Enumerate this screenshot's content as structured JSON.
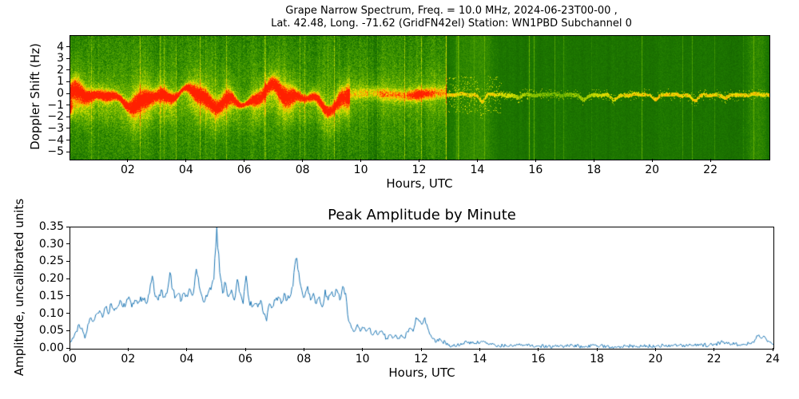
{
  "figure": {
    "suptitle_line1": "Grape Narrow Spectrum, Freq. = 10.0 MHz, 2024-06-23T00-00 ,",
    "suptitle_line2": "Lat.  42.48, Long. -71.62 (GridFN42el) Station: WN1PBD Subchannel 0"
  },
  "chart_data": [
    {
      "type": "heatmap",
      "name": "doppler-spectrogram",
      "xlabel": "Hours, UTC",
      "ylabel": "Doppler Shift (Hz)",
      "xlim": [
        0,
        24
      ],
      "ylim": [
        -5.6,
        5.0
      ],
      "xticks": [
        2,
        4,
        6,
        8,
        10,
        12,
        14,
        16,
        18,
        20,
        22
      ],
      "xtick_labels": [
        "02",
        "04",
        "06",
        "08",
        "10",
        "12",
        "14",
        "16",
        "18",
        "20",
        "22"
      ],
      "yticks": [
        4,
        3,
        2,
        1,
        0,
        -1,
        -2,
        -3,
        -4,
        -5
      ],
      "ytick_labels": [
        "4",
        "3",
        "2",
        "1",
        "0",
        "−1",
        "−2",
        "−3",
        "−4",
        "−5"
      ],
      "colormap_stops": [
        [
          0.0,
          "#0b4d00"
        ],
        [
          0.3,
          "#1f7a00"
        ],
        [
          0.5,
          "#57a800"
        ],
        [
          0.65,
          "#a8cf00"
        ],
        [
          0.75,
          "#f0e400"
        ],
        [
          0.85,
          "#ff9e00"
        ],
        [
          1.0,
          "#ff2000"
        ]
      ],
      "features": {
        "background_day": "bright speckled green with yellow vertical streaks from 00:00 to ~12:55 UTC",
        "background_night": "darker uniform green from ~13:00 to 24:00 UTC with light streak clusters near 13:00-14:45 and 23:10-24:00",
        "carrier_band_day": "strong red/orange Doppler trace oscillating roughly ±1.5 Hz about 0 Hz from 00:00 to ~09:36, surrounded by a yellow halo",
        "midday_band": "weaker yellow band near 0 Hz from ~09:36 to ~12:55 with orange spots near 12:00",
        "transition": "sharp bright vertical line at ~12:56 UTC where the background steps darker",
        "night_line": "thin jagged yellow carrier line near 0 Hz from 13:00 to 24:00 with small downward excursions near 14:10, 17:35, 18:40 and 21:30"
      }
    },
    {
      "type": "line",
      "name": "peak-amplitude",
      "title": "Peak Amplitude by Minute",
      "xlabel": "Hours, UTC",
      "ylabel": "Amplitude, uncalibrated units",
      "xlim": [
        0,
        24
      ],
      "ylim": [
        0,
        0.35
      ],
      "xticks": [
        0,
        2,
        4,
        6,
        8,
        10,
        12,
        14,
        16,
        18,
        20,
        22,
        24
      ],
      "xtick_labels": [
        "00",
        "02",
        "04",
        "06",
        "08",
        "10",
        "12",
        "14",
        "16",
        "18",
        "20",
        "22",
        "24"
      ],
      "yticks": [
        0,
        0.05,
        0.1,
        0.15,
        0.2,
        0.25,
        0.3,
        0.35
      ],
      "ytick_labels": [
        "0.00",
        "0.05",
        "0.10",
        "0.15",
        "0.20",
        "0.25",
        "0.30",
        "0.35"
      ],
      "line_color": "#1f77b4",
      "noise_amplitude": 0.005,
      "x": [
        0,
        0.1,
        0.2,
        0.3,
        0.4,
        0.5,
        0.6,
        0.7,
        0.8,
        0.9,
        1,
        1.1,
        1.2,
        1.3,
        1.4,
        1.5,
        1.6,
        1.7,
        1.8,
        1.9,
        2,
        2.1,
        2.2,
        2.3,
        2.4,
        2.5,
        2.6,
        2.7,
        2.8,
        2.9,
        3,
        3.1,
        3.2,
        3.3,
        3.4,
        3.5,
        3.6,
        3.7,
        3.8,
        3.9,
        4,
        4.1,
        4.2,
        4.3,
        4.4,
        4.5,
        4.6,
        4.7,
        4.8,
        4.9,
        5,
        5.1,
        5.2,
        5.3,
        5.4,
        5.5,
        5.6,
        5.7,
        5.8,
        5.9,
        6,
        6.1,
        6.2,
        6.3,
        6.4,
        6.5,
        6.6,
        6.7,
        6.8,
        6.9,
        7,
        7.1,
        7.2,
        7.3,
        7.4,
        7.5,
        7.6,
        7.7,
        7.8,
        7.9,
        8,
        8.1,
        8.2,
        8.3,
        8.4,
        8.5,
        8.6,
        8.7,
        8.8,
        8.9,
        9,
        9.1,
        9.2,
        9.3,
        9.4,
        9.5,
        9.6,
        9.7,
        9.8,
        9.9,
        10,
        10.1,
        10.2,
        10.3,
        10.4,
        10.5,
        10.6,
        10.7,
        10.8,
        10.9,
        11,
        11.1,
        11.2,
        11.3,
        11.4,
        11.5,
        11.6,
        11.7,
        11.8,
        11.9,
        12,
        12.1,
        12.2,
        12.3,
        12.4,
        12.5,
        12.6,
        12.7,
        12.8,
        12.9,
        13,
        13.2,
        13.4,
        13.6,
        13.8,
        14,
        14.2,
        14.5,
        15,
        15.5,
        16,
        16.5,
        17,
        17.5,
        18,
        18.5,
        19,
        19.5,
        20,
        20.5,
        21,
        21.5,
        22,
        22.3,
        22.5,
        23,
        23.3,
        23.5,
        23.6,
        23.7,
        23.8,
        24
      ],
      "y": [
        0.02,
        0.03,
        0.05,
        0.07,
        0.06,
        0.03,
        0.07,
        0.09,
        0.08,
        0.1,
        0.11,
        0.09,
        0.12,
        0.1,
        0.13,
        0.11,
        0.12,
        0.14,
        0.12,
        0.13,
        0.15,
        0.12,
        0.14,
        0.13,
        0.15,
        0.14,
        0.13,
        0.16,
        0.21,
        0.15,
        0.14,
        0.17,
        0.15,
        0.16,
        0.22,
        0.17,
        0.15,
        0.16,
        0.14,
        0.16,
        0.15,
        0.17,
        0.16,
        0.23,
        0.18,
        0.15,
        0.14,
        0.16,
        0.17,
        0.2,
        0.35,
        0.22,
        0.16,
        0.19,
        0.15,
        0.17,
        0.14,
        0.2,
        0.16,
        0.13,
        0.21,
        0.14,
        0.12,
        0.13,
        0.12,
        0.14,
        0.1,
        0.08,
        0.13,
        0.12,
        0.14,
        0.15,
        0.13,
        0.16,
        0.14,
        0.15,
        0.18,
        0.26,
        0.22,
        0.17,
        0.15,
        0.18,
        0.14,
        0.16,
        0.13,
        0.15,
        0.12,
        0.17,
        0.14,
        0.16,
        0.15,
        0.17,
        0.14,
        0.18,
        0.16,
        0.08,
        0.06,
        0.05,
        0.07,
        0.05,
        0.06,
        0.05,
        0.06,
        0.04,
        0.05,
        0.04,
        0.05,
        0.04,
        0.03,
        0.04,
        0.03,
        0.04,
        0.03,
        0.04,
        0.03,
        0.05,
        0.06,
        0.05,
        0.09,
        0.08,
        0.07,
        0.09,
        0.06,
        0.04,
        0.03,
        0.02,
        0.03,
        0.02,
        0.02,
        0.01,
        0.005,
        0.01,
        0.015,
        0.02,
        0.015,
        0.02,
        0.015,
        0.01,
        0.008,
        0.01,
        0.008,
        0.006,
        0.008,
        0.007,
        0.008,
        0.006,
        0.008,
        0.007,
        0.008,
        0.01,
        0.008,
        0.01,
        0.012,
        0.02,
        0.015,
        0.012,
        0.02,
        0.04,
        0.03,
        0.035,
        0.02,
        0.012
      ]
    }
  ]
}
